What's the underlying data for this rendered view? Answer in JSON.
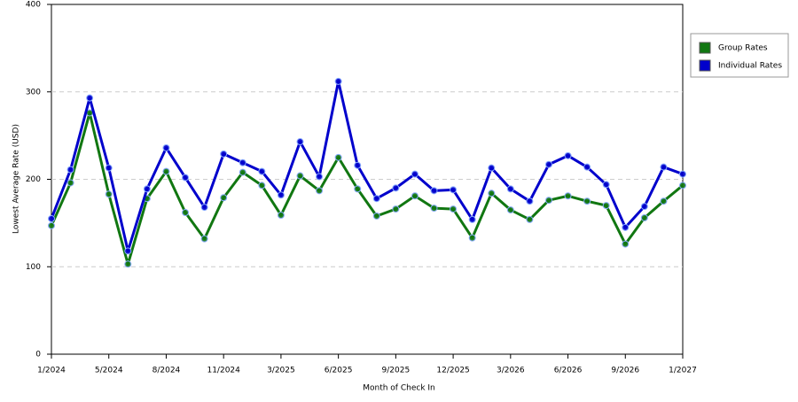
{
  "chart_data": {
    "type": "line",
    "xlabel": "Month of Check In",
    "ylabel": "Lowest Average Rate (USD)",
    "categories": [
      "1/2024",
      null,
      null,
      "5/2024",
      null,
      null,
      "8/2024",
      null,
      null,
      "11/2024",
      null,
      null,
      "3/2025",
      null,
      null,
      "6/2025",
      null,
      null,
      "9/2025",
      null,
      null,
      "12/2025",
      null,
      null,
      "3/2026",
      null,
      null,
      "6/2026",
      null,
      null,
      "9/2026",
      null,
      null,
      "1/2027"
    ],
    "series": [
      {
        "name": "Group Rates",
        "color": "#117711",
        "values": [
          147,
          196,
          276,
          183,
          103,
          178,
          209,
          162,
          132,
          179,
          208,
          193,
          159,
          204,
          187,
          225,
          189,
          158,
          166,
          181,
          167,
          166,
          133,
          184,
          165,
          154,
          176,
          181,
          175,
          170,
          126,
          156,
          175,
          193
        ]
      },
      {
        "name": "Individual Rates",
        "color": "#0000cc",
        "values": [
          155,
          211,
          293,
          213,
          118,
          189,
          236,
          202,
          168,
          229,
          219,
          209,
          182,
          243,
          203,
          312,
          216,
          178,
          190,
          206,
          187,
          188,
          154,
          213,
          189,
          175,
          217,
          227,
          214,
          194,
          145,
          169,
          214,
          206
        ]
      }
    ],
    "ylim": [
      0,
      400
    ],
    "yticks": [
      0,
      100,
      200,
      300,
      400
    ],
    "grid": true,
    "legend": "right"
  }
}
